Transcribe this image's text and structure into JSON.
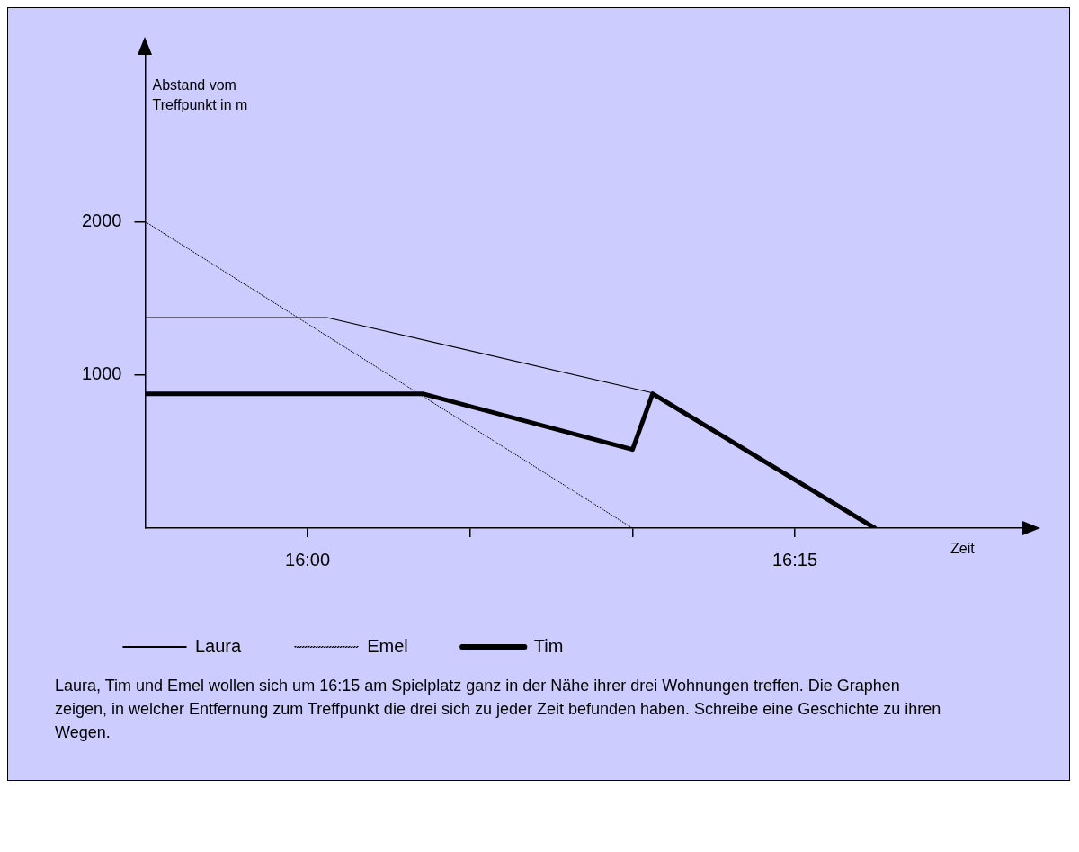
{
  "chart_data": {
    "type": "line",
    "xlabel": "Zeit",
    "ylabel": "Abstand vom Treffpunkt in m",
    "series": [
      {
        "name": "Laura",
        "color": "#000000",
        "line_style": "solid",
        "x": [
          15.9167,
          16.01,
          16.177
        ],
        "values": [
          1374,
          1374,
          882
        ]
      },
      {
        "name": "Emel",
        "color": "#000000",
        "line_style": "dotted",
        "x": [
          15.9167,
          16.1667
        ],
        "values": [
          2000,
          0
        ]
      },
      {
        "name": "Tim",
        "color": "#000000",
        "line_style": "solid",
        "x": [
          15.9167,
          16.059,
          16.1667,
          16.177,
          16.291
        ],
        "values": [
          877,
          877,
          513,
          877,
          0
        ]
      }
    ],
    "xlim": [
      15.9167,
      16.3667
    ],
    "xticks": [
      {
        "value": 16,
        "label": "16:00"
      },
      {
        "value": 16.0833,
        "label": null
      },
      {
        "value": 16.1667,
        "label": null
      },
      {
        "value": 16.25,
        "label": "16:15"
      }
    ],
    "ylim": [
      0,
      3100
    ],
    "yticks": [
      1000,
      2000
    ],
    "grid": false,
    "legend": "bottom",
    "marker": "none",
    "annotations": [
      "Laura, Tim und Emel wollen sich um 16:15 am Spielplatz ganz in der Nähe ihrer drei Wohnungen treffen. Die Graphen zeigen, in welcher Entfernung zum Treffpunkt die drei sich zu jeder Zeit befunden haben. Schreibe eine Geschichte zu ihren Wegen."
    ]
  }
}
